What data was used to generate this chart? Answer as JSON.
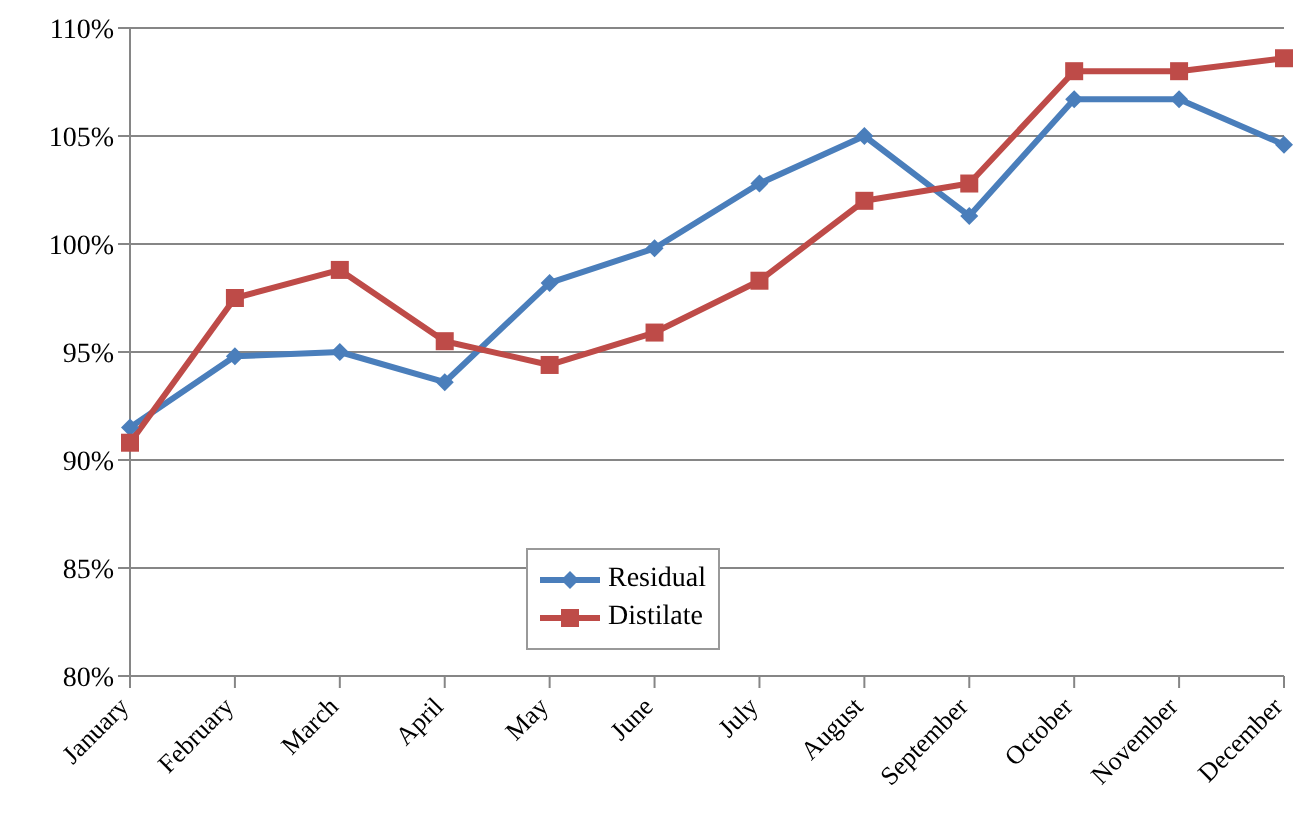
{
  "chart_data": {
    "type": "line",
    "categories": [
      "January",
      "February",
      "March",
      "April",
      "May",
      "June",
      "July",
      "August",
      "September",
      "October",
      "November",
      "December"
    ],
    "series": [
      {
        "name": "Residual",
        "color": "#4a7ebb",
        "marker": "diamond",
        "values": [
          91.5,
          94.8,
          95.0,
          93.6,
          98.2,
          99.8,
          102.8,
          105.0,
          101.3,
          106.7,
          106.7,
          104.6
        ]
      },
      {
        "name": "Distilate",
        "color": "#be4b48",
        "marker": "square",
        "values": [
          90.8,
          97.5,
          98.8,
          95.5,
          94.4,
          95.9,
          98.3,
          102.0,
          102.8,
          108.0,
          108.0,
          108.6
        ]
      }
    ],
    "ylim": [
      80,
      110
    ],
    "yticks": [
      {
        "value": 80,
        "label": "80%"
      },
      {
        "value": 85,
        "label": "85%"
      },
      {
        "value": 90,
        "label": "90%"
      },
      {
        "value": 95,
        "label": "95%"
      },
      {
        "value": 100,
        "label": "100%"
      },
      {
        "value": 105,
        "label": "105%"
      },
      {
        "value": 110,
        "label": "110%"
      }
    ],
    "grid": "y",
    "legend": "bottom left",
    "line_style": "solid"
  }
}
